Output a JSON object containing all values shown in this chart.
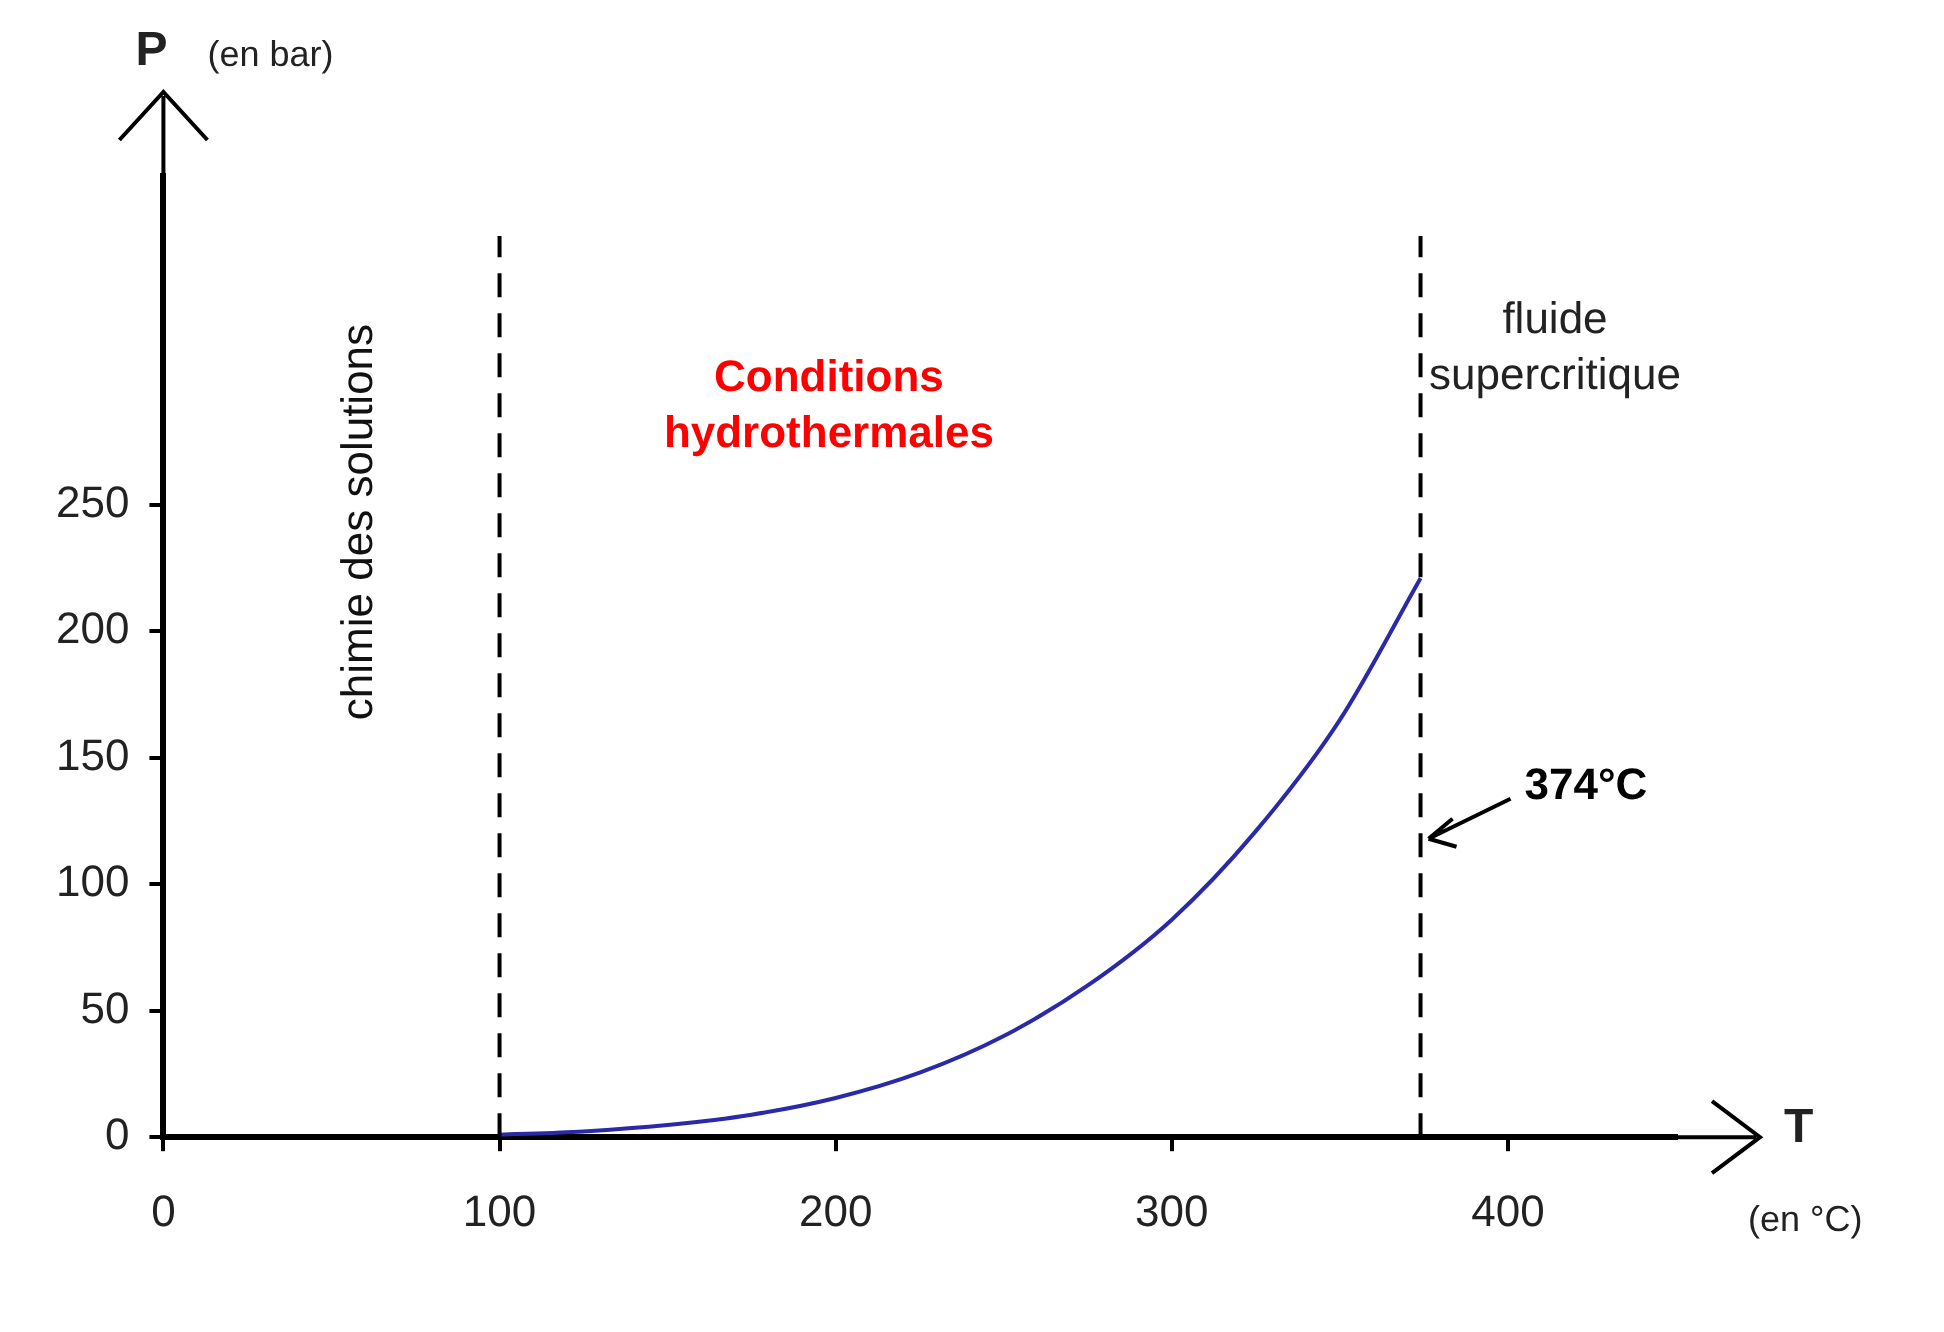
{
  "chart_data": {
    "type": "line",
    "xlabel": "T (en °C)",
    "ylabel": "P (en bar)",
    "x": [
      100,
      125,
      150,
      175,
      200,
      225,
      250,
      275,
      300,
      325,
      350,
      374
    ],
    "series": [
      {
        "color": "#2a2aa8",
        "values": [
          1,
          2.3,
          4.8,
          8.9,
          15.5,
          25.5,
          40,
          60,
          86,
          121,
          165,
          221
        ]
      }
    ],
    "xlim": [
      0,
      450
    ],
    "ylim": [
      0,
      380
    ],
    "xticks": [
      0,
      100,
      200,
      300,
      400
    ],
    "yticks": [
      0,
      50,
      100,
      150,
      200,
      250
    ],
    "grid": false,
    "legend": false,
    "marker": "none",
    "line_style": "solid",
    "ref_lines": [
      {
        "axis": "x",
        "value": 100,
        "color": "#000000",
        "line_style": "dashed"
      },
      {
        "axis": "x",
        "value": 374,
        "label": "374°C",
        "color": "#000000",
        "line_style": "dashed"
      }
    ],
    "annotations": [
      "chimie des solutions",
      "Conditions hydrothermales",
      "fluide supercritique"
    ]
  }
}
